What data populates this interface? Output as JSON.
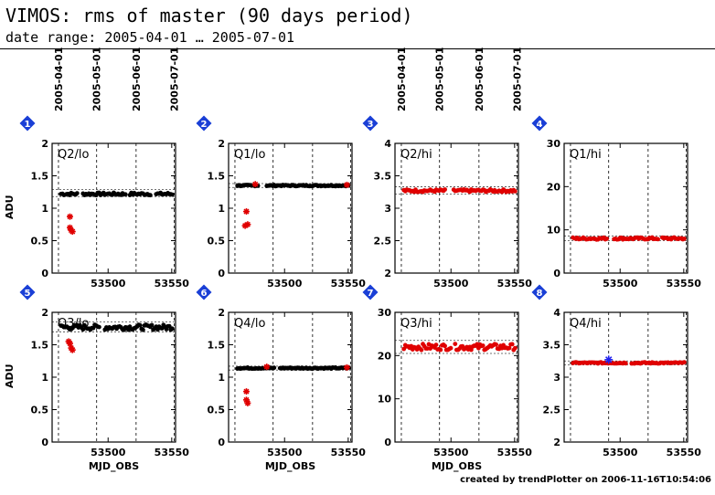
{
  "header": {
    "title": "VIMOS: rms of master (90 days period)",
    "subtitle": "date range: 2005-04-01 … 2005-07-01"
  },
  "footer": "created by trendPlotter on 2006-11-16T10:54:06",
  "chart_data": {
    "type": "scatter",
    "xlabel": "MJD_OBS",
    "ylabel": "ADU",
    "xlim": [
      53456,
      53553
    ],
    "xticks": [
      53500,
      53550
    ],
    "date_axis": {
      "labels": [
        "2005-04-01",
        "2005-05-01",
        "2005-06-01",
        "2005-07-01"
      ],
      "mjd": [
        53461,
        53491,
        53522,
        53552
      ]
    },
    "colors": {
      "normal": "#000000",
      "outlier": "#e00000",
      "highlight": "#2222ee",
      "badge": "#1a3fd6"
    },
    "panels": [
      {
        "id": "1",
        "label": "Q2/lo",
        "ylim": [
          0,
          2
        ],
        "yticks": [
          0,
          0.5,
          1,
          1.5,
          2
        ],
        "ytick_labels": [
          "0",
          "0.5",
          "1",
          "1.5",
          "2"
        ],
        "ref_lines": [
          1.18,
          1.29
        ],
        "point_color": "normal",
        "base": 1.22,
        "jitter": 0.02,
        "outliers": [
          {
            "x": 53470,
            "y": 0.87
          },
          {
            "x": 53471,
            "y": 0.66
          },
          {
            "x": 53472,
            "y": 0.64
          },
          {
            "x": 53470,
            "y": 0.7
          }
        ],
        "gaps": [
          [
            53476,
            53480
          ],
          [
            53514,
            53517
          ],
          [
            53534,
            53537
          ]
        ]
      },
      {
        "id": "2",
        "label": "Q1/lo",
        "ylim": [
          0,
          2
        ],
        "yticks": [
          0,
          0.5,
          1,
          1.5,
          2
        ],
        "ytick_labels": [
          "0",
          "0.5",
          "1",
          "1.5",
          "2"
        ],
        "ref_lines": [
          1.32,
          1.38
        ],
        "point_color": "normal",
        "base": 1.35,
        "jitter": 0.01,
        "outliers": [
          {
            "x": 53470,
            "y": 0.95
          },
          {
            "x": 53471,
            "y": 0.75
          },
          {
            "x": 53469,
            "y": 0.73
          },
          {
            "x": 53477,
            "y": 1.37
          },
          {
            "x": 53549,
            "y": 1.36
          }
        ],
        "gaps": [
          [
            53480,
            53485
          ]
        ]
      },
      {
        "id": "3",
        "label": "Q2/hi",
        "ylim": [
          2,
          4
        ],
        "yticks": [
          2,
          2.5,
          3,
          3.5,
          4
        ],
        "ytick_labels": [
          "2",
          "2.5",
          "3",
          "3.5",
          "4"
        ],
        "ref_lines": [
          3.22,
          3.33
        ],
        "point_color": "outlier",
        "base": 3.27,
        "jitter": 0.02,
        "outliers": [],
        "gaps": [
          [
            53496,
            53502
          ]
        ]
      },
      {
        "id": "4",
        "label": "Q1/hi",
        "ylim": [
          0,
          30
        ],
        "yticks": [
          0,
          10,
          20,
          30
        ],
        "ytick_labels": [
          "0",
          "10",
          "20",
          "30"
        ],
        "ref_lines": [
          7.5,
          8.6
        ],
        "point_color": "outlier",
        "base": 8.0,
        "jitter": 0.25,
        "outliers": [],
        "gaps": [
          [
            53490,
            53495
          ],
          [
            53530,
            53533
          ]
        ]
      },
      {
        "id": "5",
        "label": "Q3/lo",
        "ylim": [
          0,
          2
        ],
        "yticks": [
          0,
          0.5,
          1,
          1.5,
          2
        ],
        "ytick_labels": [
          "0",
          "0.5",
          "1",
          "1.5",
          "2"
        ],
        "ref_lines": [
          1.7,
          1.85
        ],
        "point_color": "normal",
        "base": 1.77,
        "jitter": 0.04,
        "outliers": [
          {
            "x": 53470,
            "y": 1.52
          },
          {
            "x": 53471,
            "y": 1.45
          },
          {
            "x": 53472,
            "y": 1.42
          },
          {
            "x": 53469,
            "y": 1.55
          }
        ],
        "gaps": [
          [
            53493,
            53497
          ]
        ]
      },
      {
        "id": "6",
        "label": "Q4/lo",
        "ylim": [
          0,
          2
        ],
        "yticks": [
          0,
          0.5,
          1,
          1.5,
          2
        ],
        "ytick_labels": [
          "0",
          "0.5",
          "1",
          "1.5",
          "2"
        ],
        "ref_lines": [
          1.11,
          1.17
        ],
        "point_color": "normal",
        "base": 1.14,
        "jitter": 0.01,
        "outliers": [
          {
            "x": 53470,
            "y": 0.78
          },
          {
            "x": 53470,
            "y": 0.65
          },
          {
            "x": 53471,
            "y": 0.6
          },
          {
            "x": 53486,
            "y": 1.16
          },
          {
            "x": 53549,
            "y": 1.15
          }
        ],
        "gaps": [
          [
            53492,
            53496
          ]
        ]
      },
      {
        "id": "7",
        "label": "Q3/hi",
        "ylim": [
          0,
          30
        ],
        "yticks": [
          0,
          10,
          20,
          30
        ],
        "ytick_labels": [
          "0",
          "10",
          "20",
          "30"
        ],
        "ref_lines": [
          20.5,
          23.5
        ],
        "point_color": "outlier",
        "base": 22.0,
        "jitter": 0.7,
        "outliers": [],
        "gaps": [
          [
            53500,
            53503
          ]
        ]
      },
      {
        "id": "8",
        "label": "Q4/hi",
        "ylim": [
          2,
          4
        ],
        "yticks": [
          2,
          2.5,
          3,
          3.5,
          4
        ],
        "ytick_labels": [
          "2",
          "2.5",
          "3",
          "3.5",
          "4"
        ],
        "ref_lines": [
          3.19,
          3.25
        ],
        "point_color": "outlier",
        "base": 3.22,
        "jitter": 0.01,
        "outliers": [],
        "highlight": [
          {
            "x": 53491,
            "y": 3.27
          }
        ],
        "gaps": [
          [
            53505,
            53508
          ]
        ]
      }
    ]
  }
}
